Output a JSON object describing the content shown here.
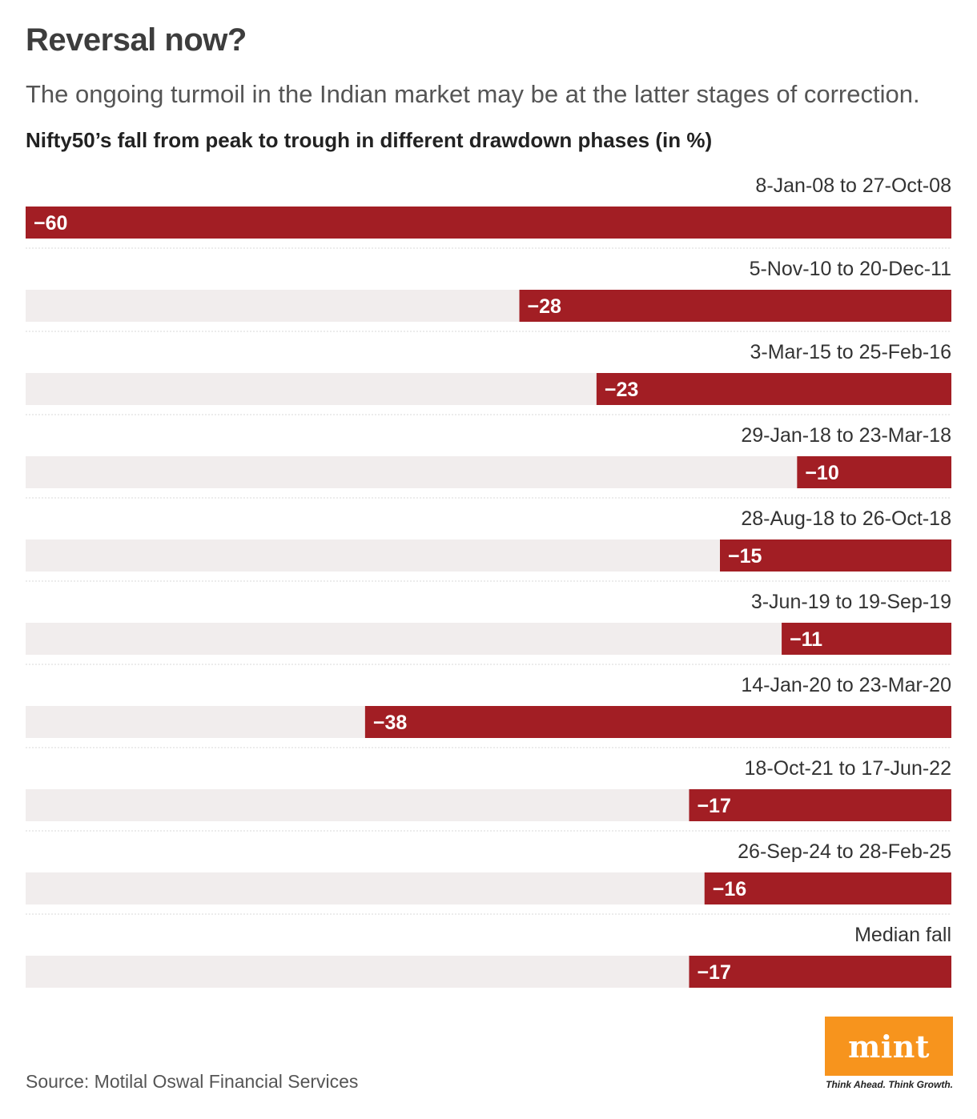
{
  "header": {
    "title": "Reversal now?",
    "subtitle": "The ongoing turmoil in the Indian market may be at the latter stages of correction."
  },
  "chart_data": {
    "type": "bar",
    "orientation": "horizontal",
    "title": "Nifty50’s fall from peak to trough in different drawdown phases (in %)",
    "xlabel": "",
    "ylabel": "",
    "xlim": [
      -60,
      0
    ],
    "grid": false,
    "legend": "none",
    "categories": [
      "8-Jan-08 to 27-Oct-08",
      "5-Nov-10 to 20-Dec-11",
      "3-Mar-15 to 25-Feb-16",
      "29-Jan-18 to 23-Mar-18",
      "28-Aug-18 to 26-Oct-18",
      "3-Jun-19 to 19-Sep-19",
      "14-Jan-20 to 23-Mar-20",
      "18-Oct-21 to 17-Jun-22",
      "26-Sep-24 to 28-Feb-25",
      "Median fall"
    ],
    "values": [
      -60,
      -28,
      -23,
      -10,
      -15,
      -11,
      -38,
      -17,
      -16,
      -17
    ],
    "value_labels": [
      "−60",
      "−28",
      "−23",
      "−10",
      "−15",
      "−11",
      "−38",
      "−17",
      "−16",
      "−17"
    ],
    "colors": {
      "bar": "#a21e24",
      "track": "#f1eded",
      "divider": "#d9d9d9",
      "value_text": "#ffffff"
    }
  },
  "footer": {
    "source": "Source: Motilal Oswal Financial Services",
    "logo_text": "mint",
    "tagline": "Think Ahead. Think Growth."
  }
}
